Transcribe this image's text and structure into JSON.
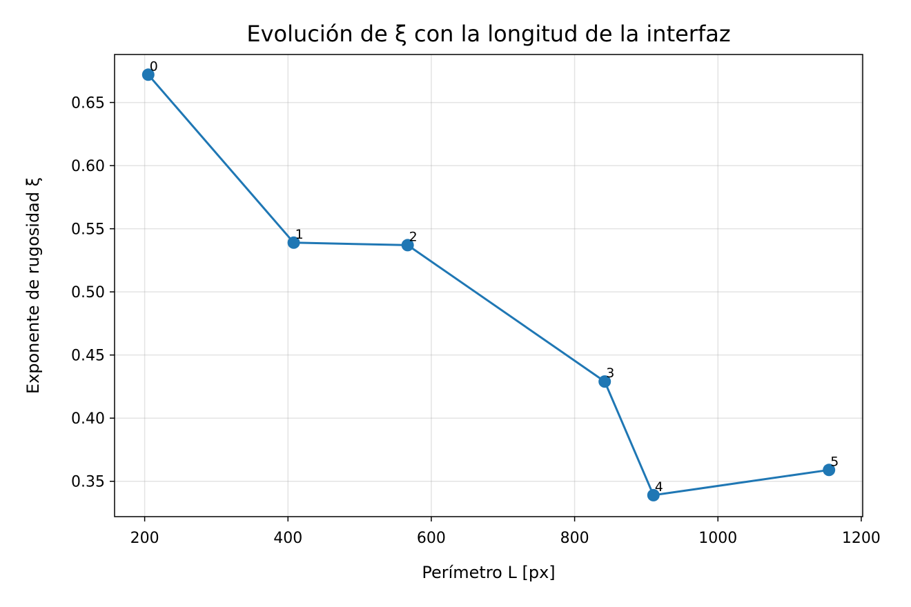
{
  "chart_data": {
    "type": "line",
    "title": "Evolución de ξ con la longitud de la interfaz",
    "xlabel": "Perímetro L [px]",
    "ylabel": "Exponente de rugosidad ξ",
    "xlim": [
      158,
      1202
    ],
    "ylim": [
      0.322,
      0.688
    ],
    "xticks": [
      200,
      400,
      600,
      800,
      1000,
      1200
    ],
    "xtick_labels": [
      "200",
      "400",
      "600",
      "800",
      "1000",
      "1200"
    ],
    "yticks": [
      0.35,
      0.4,
      0.45,
      0.5,
      0.55,
      0.6,
      0.65
    ],
    "ytick_labels": [
      "0.35",
      "0.40",
      "0.45",
      "0.50",
      "0.55",
      "0.60",
      "0.65"
    ],
    "grid": true,
    "series": [
      {
        "color": "#1f77b4",
        "marker": "circle",
        "points": [
          {
            "label": "0",
            "x": 205,
            "y": 0.672
          },
          {
            "label": "1",
            "x": 408,
            "y": 0.539
          },
          {
            "label": "2",
            "x": 567,
            "y": 0.537
          },
          {
            "label": "3",
            "x": 842,
            "y": 0.429
          },
          {
            "label": "4",
            "x": 910,
            "y": 0.339
          },
          {
            "label": "5",
            "x": 1155,
            "y": 0.359
          }
        ]
      }
    ]
  }
}
